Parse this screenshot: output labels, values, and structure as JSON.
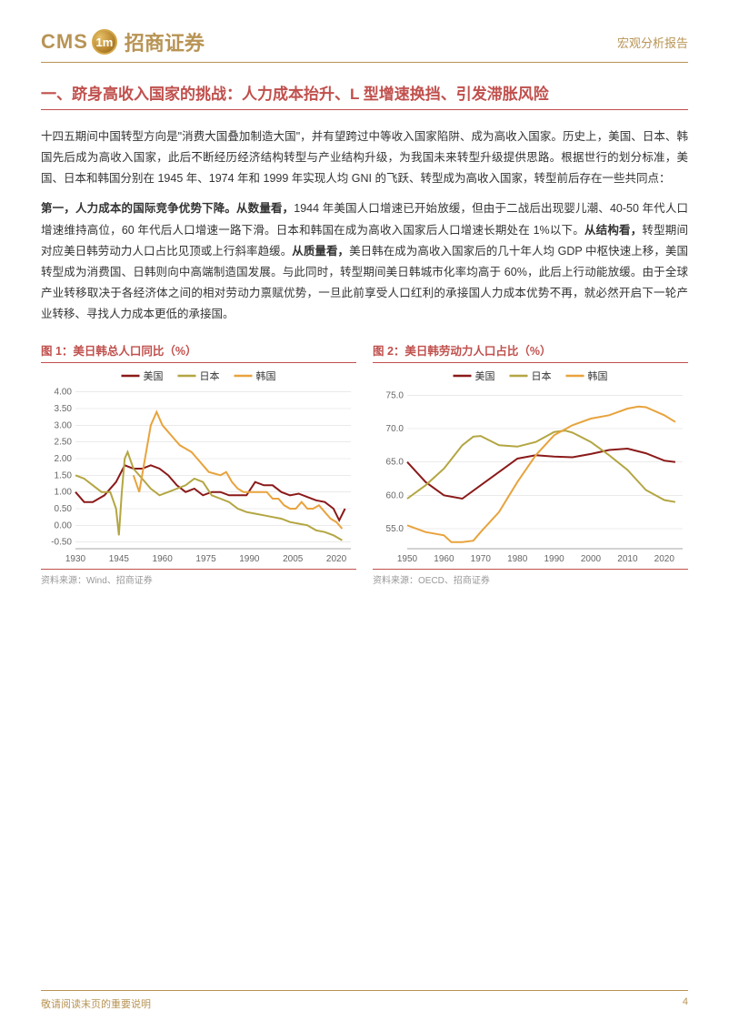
{
  "header": {
    "logo_en": "CMS",
    "logo_badge": "1m",
    "logo_cn": "招商证券",
    "report_type": "宏观分析报告"
  },
  "section_title": "一、跻身高收入国家的挑战：人力成本抬升、L 型增速换挡、引发滞胀风险",
  "para1": "十四五期间中国转型方向是\"消费大国叠加制造大国\"，并有望跨过中等收入国家陷阱、成为高收入国家。历史上，美国、日本、韩国先后成为高收入国家，此后不断经历经济结构转型与产业结构升级，为我国未来转型升级提供思路。根据世行的划分标准，美国、日本和韩国分别在 1945 年、1974 年和 1999 年实现人均 GNI 的飞跃、转型成为高收入国家，转型前后存在一些共同点：",
  "para2_bold": "第一，人力成本的国际竞争优势下降。从数量看，",
  "para2_rest": "1944 年美国人口增速已开始放缓，但由于二战后出现婴儿潮、40-50 年代人口增速维持高位，60 年代后人口增速一路下滑。日本和韩国在成为高收入国家后人口增速长期处在 1%以下。",
  "para2_bold2": "从结构看，",
  "para2_rest2": "转型期间对应美日韩劳动力人口占比见顶或上行斜率趋缓。",
  "para2_bold3": "从质量看，",
  "para2_rest3": "美日韩在成为高收入国家后的几十年人均 GDP 中枢快速上移，美国转型成为消费国、日韩则向中高端制造国发展。与此同时，转型期间美日韩城市化率均高于 60%，此后上行动能放缓。由于全球产业转移取决于各经济体之间的相对劳动力禀赋优势，一旦此前享受人口红利的承接国人力成本优势不再，就必然开启下一轮产业转移、寻找人力成本更低的承接国。",
  "chart1": {
    "title": "图 1：美日韩总人口同比（%）",
    "source": "资料来源：Wind、招商证券",
    "type": "line",
    "x_ticks": [
      1930,
      1945,
      1960,
      1975,
      1990,
      2005,
      2020
    ],
    "y_ticks": [
      -0.5,
      0.0,
      0.5,
      1.0,
      1.5,
      2.0,
      2.5,
      3.0,
      3.5,
      4.0
    ],
    "xlim": [
      1930,
      2025
    ],
    "ylim": [
      -0.7,
      4.1
    ],
    "series": [
      {
        "name": "美国",
        "color": "#8b1a1a",
        "data": [
          [
            1930,
            1.0
          ],
          [
            1933,
            0.7
          ],
          [
            1936,
            0.7
          ],
          [
            1940,
            0.9
          ],
          [
            1944,
            1.3
          ],
          [
            1947,
            1.8
          ],
          [
            1950,
            1.7
          ],
          [
            1953,
            1.7
          ],
          [
            1956,
            1.8
          ],
          [
            1959,
            1.7
          ],
          [
            1962,
            1.5
          ],
          [
            1965,
            1.2
          ],
          [
            1968,
            1.0
          ],
          [
            1971,
            1.1
          ],
          [
            1974,
            0.9
          ],
          [
            1977,
            1.0
          ],
          [
            1980,
            1.0
          ],
          [
            1983,
            0.9
          ],
          [
            1986,
            0.9
          ],
          [
            1989,
            0.9
          ],
          [
            1992,
            1.3
          ],
          [
            1995,
            1.2
          ],
          [
            1998,
            1.2
          ],
          [
            2001,
            1.0
          ],
          [
            2004,
            0.9
          ],
          [
            2007,
            0.95
          ],
          [
            2010,
            0.85
          ],
          [
            2013,
            0.75
          ],
          [
            2016,
            0.7
          ],
          [
            2019,
            0.5
          ],
          [
            2021,
            0.15
          ],
          [
            2023,
            0.5
          ]
        ]
      },
      {
        "name": "日本",
        "color": "#b3a642",
        "data": [
          [
            1930,
            1.5
          ],
          [
            1933,
            1.4
          ],
          [
            1936,
            1.2
          ],
          [
            1939,
            1.0
          ],
          [
            1942,
            1.0
          ],
          [
            1944,
            0.5
          ],
          [
            1945,
            -0.3
          ],
          [
            1946,
            1.0
          ],
          [
            1947,
            2.0
          ],
          [
            1948,
            2.2
          ],
          [
            1950,
            1.7
          ],
          [
            1953,
            1.4
          ],
          [
            1956,
            1.1
          ],
          [
            1959,
            0.9
          ],
          [
            1962,
            1.0
          ],
          [
            1965,
            1.1
          ],
          [
            1968,
            1.2
          ],
          [
            1971,
            1.4
          ],
          [
            1974,
            1.3
          ],
          [
            1977,
            0.9
          ],
          [
            1980,
            0.8
          ],
          [
            1983,
            0.7
          ],
          [
            1986,
            0.5
          ],
          [
            1989,
            0.4
          ],
          [
            1992,
            0.35
          ],
          [
            1995,
            0.3
          ],
          [
            1998,
            0.25
          ],
          [
            2001,
            0.2
          ],
          [
            2004,
            0.1
          ],
          [
            2007,
            0.05
          ],
          [
            2010,
            0.0
          ],
          [
            2013,
            -0.15
          ],
          [
            2016,
            -0.2
          ],
          [
            2019,
            -0.3
          ],
          [
            2022,
            -0.45
          ]
        ]
      },
      {
        "name": "韩国",
        "color": "#e8a33d",
        "data": [
          [
            1950,
            1.5
          ],
          [
            1952,
            1.0
          ],
          [
            1954,
            2.0
          ],
          [
            1956,
            3.0
          ],
          [
            1958,
            3.4
          ],
          [
            1960,
            3.0
          ],
          [
            1962,
            2.8
          ],
          [
            1964,
            2.6
          ],
          [
            1966,
            2.4
          ],
          [
            1968,
            2.3
          ],
          [
            1970,
            2.2
          ],
          [
            1972,
            2.0
          ],
          [
            1974,
            1.8
          ],
          [
            1976,
            1.6
          ],
          [
            1978,
            1.55
          ],
          [
            1980,
            1.5
          ],
          [
            1982,
            1.6
          ],
          [
            1984,
            1.3
          ],
          [
            1986,
            1.1
          ],
          [
            1988,
            1.0
          ],
          [
            1990,
            1.0
          ],
          [
            1992,
            1.0
          ],
          [
            1994,
            1.0
          ],
          [
            1996,
            1.0
          ],
          [
            1998,
            0.8
          ],
          [
            2000,
            0.8
          ],
          [
            2002,
            0.6
          ],
          [
            2004,
            0.5
          ],
          [
            2006,
            0.5
          ],
          [
            2008,
            0.7
          ],
          [
            2010,
            0.5
          ],
          [
            2012,
            0.5
          ],
          [
            2014,
            0.6
          ],
          [
            2016,
            0.4
          ],
          [
            2018,
            0.2
          ],
          [
            2020,
            0.1
          ],
          [
            2022,
            -0.1
          ]
        ]
      }
    ],
    "grid_color": "#dddddd",
    "legend_labels": {
      "us": "美国",
      "jp": "日本",
      "kr": "韩国"
    }
  },
  "chart2": {
    "title": "图 2：美日韩劳动力人口占比（%）",
    "source": "资料来源：OECD、招商证券",
    "type": "line",
    "x_ticks": [
      1950,
      1960,
      1970,
      1980,
      1990,
      2000,
      2010,
      2020
    ],
    "y_ticks": [
      55.0,
      60.0,
      65.0,
      70.0,
      75.0
    ],
    "xlim": [
      1950,
      2025
    ],
    "ylim": [
      52.0,
      76.0
    ],
    "series": [
      {
        "name": "美国",
        "color": "#8b1a1a",
        "data": [
          [
            1950,
            65.0
          ],
          [
            1955,
            62.0
          ],
          [
            1960,
            60.0
          ],
          [
            1965,
            59.5
          ],
          [
            1970,
            61.5
          ],
          [
            1975,
            63.5
          ],
          [
            1980,
            65.5
          ],
          [
            1985,
            66.0
          ],
          [
            1990,
            65.8
          ],
          [
            1995,
            65.7
          ],
          [
            2000,
            66.2
          ],
          [
            2005,
            66.8
          ],
          [
            2010,
            67.0
          ],
          [
            2015,
            66.3
          ],
          [
            2020,
            65.2
          ],
          [
            2023,
            65.0
          ]
        ]
      },
      {
        "name": "日本",
        "color": "#b3a642",
        "data": [
          [
            1950,
            59.5
          ],
          [
            1955,
            61.5
          ],
          [
            1960,
            64.0
          ],
          [
            1965,
            67.5
          ],
          [
            1968,
            68.8
          ],
          [
            1970,
            68.9
          ],
          [
            1975,
            67.5
          ],
          [
            1980,
            67.3
          ],
          [
            1985,
            68.0
          ],
          [
            1990,
            69.5
          ],
          [
            1993,
            69.7
          ],
          [
            1995,
            69.4
          ],
          [
            2000,
            68.0
          ],
          [
            2005,
            66.0
          ],
          [
            2010,
            63.8
          ],
          [
            2015,
            60.8
          ],
          [
            2020,
            59.3
          ],
          [
            2023,
            59.0
          ]
        ]
      },
      {
        "name": "韩国",
        "color": "#e8a33d",
        "data": [
          [
            1950,
            55.5
          ],
          [
            1955,
            54.5
          ],
          [
            1960,
            54.0
          ],
          [
            1962,
            53.0
          ],
          [
            1965,
            53.0
          ],
          [
            1968,
            53.2
          ],
          [
            1970,
            54.5
          ],
          [
            1975,
            57.5
          ],
          [
            1980,
            62.0
          ],
          [
            1985,
            66.0
          ],
          [
            1990,
            69.0
          ],
          [
            1995,
            70.5
          ],
          [
            2000,
            71.5
          ],
          [
            2005,
            72.0
          ],
          [
            2010,
            73.0
          ],
          [
            2013,
            73.3
          ],
          [
            2015,
            73.2
          ],
          [
            2020,
            72.0
          ],
          [
            2023,
            71.0
          ]
        ]
      }
    ],
    "grid_color": "#dddddd",
    "legend_labels": {
      "us": "美国",
      "jp": "日本",
      "kr": "韩国"
    }
  },
  "footer": {
    "disclaimer": "敬请阅读末页的重要说明",
    "page_number": "4"
  },
  "colors": {
    "accent_gold": "#b89455",
    "accent_red": "#c0504d",
    "us": "#8b1a1a",
    "jp": "#b3a642",
    "kr": "#e8a33d"
  }
}
